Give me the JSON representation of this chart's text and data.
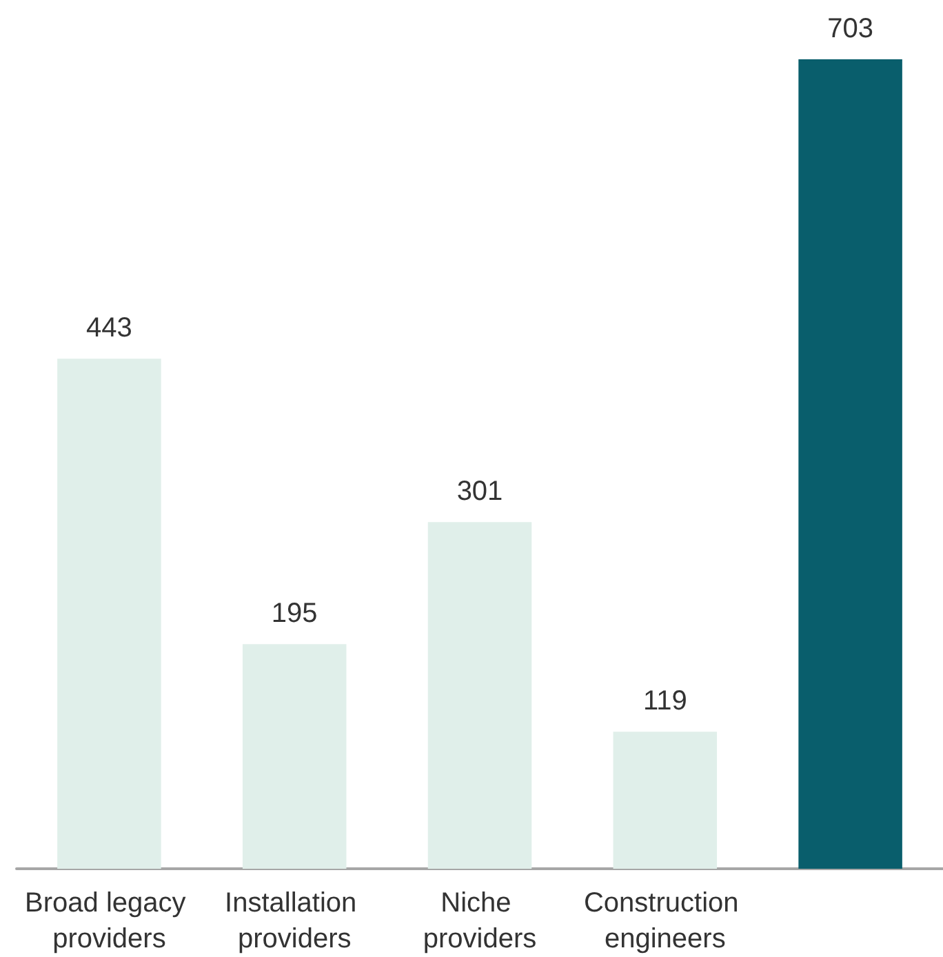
{
  "chart_data": {
    "type": "bar",
    "categories": [
      "Broad legacy providers",
      "Installation providers",
      "Niche providers",
      "Construction engineers",
      null
    ],
    "values": [
      443,
      195,
      301,
      119,
      703
    ],
    "colors": [
      "#e0efea",
      "#e0efea",
      "#e0efea",
      "#e0efea",
      "#095e6c"
    ],
    "data_labels": true
  }
}
